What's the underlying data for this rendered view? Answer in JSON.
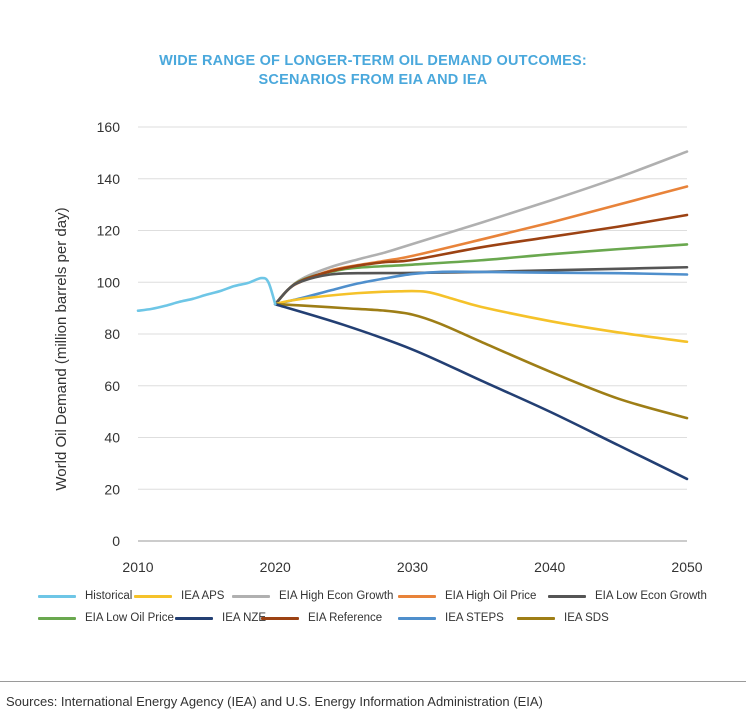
{
  "header": {
    "title_line1": "WIDE RANGE OF LONGER-TERM OIL DEMAND OUTCOMES:",
    "title_line2": "SCENARIOS FROM EIA AND IEA"
  },
  "footer": {
    "source": "Sources: International Energy Agency (IEA) and U.S. Energy Information Administration (EIA)"
  },
  "chart_data": {
    "type": "line",
    "title": "WIDE RANGE OF LONGER-TERM OIL DEMAND OUTCOMES: SCENARIOS FROM EIA AND IEA",
    "xlabel": "",
    "ylabel": "World Oil Demand (million barrels per day)",
    "xlim": [
      2010,
      2050
    ],
    "ylim": [
      0,
      160
    ],
    "x_ticks": [
      2010,
      2020,
      2030,
      2040,
      2050
    ],
    "y_ticks": [
      0,
      20,
      40,
      60,
      80,
      100,
      120,
      140,
      160
    ],
    "grid": "horizontal",
    "legend_position": "bottom",
    "series": [
      {
        "name": "Historical",
        "color": "#6ec6e6",
        "points": [
          [
            2010,
            89
          ],
          [
            2011,
            89.7
          ],
          [
            2012,
            90.9
          ],
          [
            2013,
            92.4
          ],
          [
            2014,
            93.6
          ],
          [
            2015,
            95.2
          ],
          [
            2016,
            96.6
          ],
          [
            2017,
            98.5
          ],
          [
            2018,
            99.7
          ],
          [
            2019,
            101.6
          ],
          [
            2019.5,
            100
          ],
          [
            2020,
            91.5
          ]
        ]
      },
      {
        "name": "IEA APS",
        "color": "#f5c22a",
        "points": [
          [
            2020,
            91.5
          ],
          [
            2021,
            92.8
          ],
          [
            2023,
            94.3
          ],
          [
            2026,
            95.8
          ],
          [
            2029,
            96.5
          ],
          [
            2031,
            96.3
          ],
          [
            2033,
            93.5
          ],
          [
            2035,
            90.5
          ],
          [
            2040,
            85
          ],
          [
            2045,
            80.6
          ],
          [
            2050,
            77
          ]
        ]
      },
      {
        "name": "EIA High Econ Growth",
        "color": "#b0b0b0",
        "points": [
          [
            2020,
            91.5
          ],
          [
            2021,
            97.5
          ],
          [
            2022,
            101.5
          ],
          [
            2024,
            105.8
          ],
          [
            2026,
            108.8
          ],
          [
            2028,
            111.5
          ],
          [
            2030,
            114.8
          ],
          [
            2035,
            123
          ],
          [
            2040,
            131.5
          ],
          [
            2045,
            140.5
          ],
          [
            2050,
            150.5
          ]
        ]
      },
      {
        "name": "EIA High Oil Price",
        "color": "#e8833a",
        "points": [
          [
            2020,
            91.5
          ],
          [
            2021,
            97.5
          ],
          [
            2022,
            100.5
          ],
          [
            2024,
            104.5
          ],
          [
            2026,
            106.6
          ],
          [
            2028,
            108.3
          ],
          [
            2030,
            110.2
          ],
          [
            2035,
            116.5
          ],
          [
            2040,
            123
          ],
          [
            2045,
            130
          ],
          [
            2050,
            137
          ]
        ]
      },
      {
        "name": "EIA Low Econ Growth",
        "color": "#555555",
        "points": [
          [
            2020,
            91.5
          ],
          [
            2021,
            97.5
          ],
          [
            2022,
            100.5
          ],
          [
            2024,
            103
          ],
          [
            2026,
            103.5
          ],
          [
            2030,
            103.6
          ],
          [
            2035,
            104
          ],
          [
            2040,
            104.6
          ],
          [
            2045,
            105.2
          ],
          [
            2050,
            105.8
          ]
        ]
      },
      {
        "name": "EIA Low Oil Price",
        "color": "#6aa84f",
        "points": [
          [
            2020,
            91.5
          ],
          [
            2021,
            97.5
          ],
          [
            2022,
            101
          ],
          [
            2024,
            104
          ],
          [
            2026,
            105.6
          ],
          [
            2030,
            106.8
          ],
          [
            2035,
            108.5
          ],
          [
            2040,
            110.8
          ],
          [
            2045,
            112.8
          ],
          [
            2050,
            114.6
          ]
        ]
      },
      {
        "name": "IEA NZE",
        "color": "#233f73",
        "points": [
          [
            2020,
            91.5
          ],
          [
            2025,
            83.5
          ],
          [
            2030,
            74
          ],
          [
            2035,
            62
          ],
          [
            2040,
            50
          ],
          [
            2045,
            37
          ],
          [
            2050,
            24
          ]
        ]
      },
      {
        "name": "EIA Reference",
        "color": "#9c4213",
        "points": [
          [
            2020,
            91.5
          ],
          [
            2021,
            97.5
          ],
          [
            2022,
            100.8
          ],
          [
            2024,
            104.2
          ],
          [
            2026,
            106.4
          ],
          [
            2028,
            107.8
          ],
          [
            2030,
            108.6
          ],
          [
            2035,
            113.5
          ],
          [
            2040,
            117.5
          ],
          [
            2045,
            121.5
          ],
          [
            2050,
            126
          ]
        ]
      },
      {
        "name": "IEA STEPS",
        "color": "#4f8fcc",
        "points": [
          [
            2020,
            91.5
          ],
          [
            2022,
            94
          ],
          [
            2024,
            96.8
          ],
          [
            2026,
            99.5
          ],
          [
            2028,
            101.5
          ],
          [
            2030,
            103.2
          ],
          [
            2032,
            104
          ],
          [
            2035,
            104
          ],
          [
            2040,
            103.7
          ],
          [
            2045,
            103.5
          ],
          [
            2050,
            103
          ]
        ]
      },
      {
        "name": "IEA SDS",
        "color": "#9e7e16",
        "points": [
          [
            2020,
            91.5
          ],
          [
            2022,
            91
          ],
          [
            2025,
            90
          ],
          [
            2028,
            89
          ],
          [
            2030,
            87.5
          ],
          [
            2032,
            84
          ],
          [
            2035,
            77
          ],
          [
            2040,
            65.5
          ],
          [
            2045,
            55
          ],
          [
            2050,
            47.5
          ]
        ]
      }
    ]
  }
}
